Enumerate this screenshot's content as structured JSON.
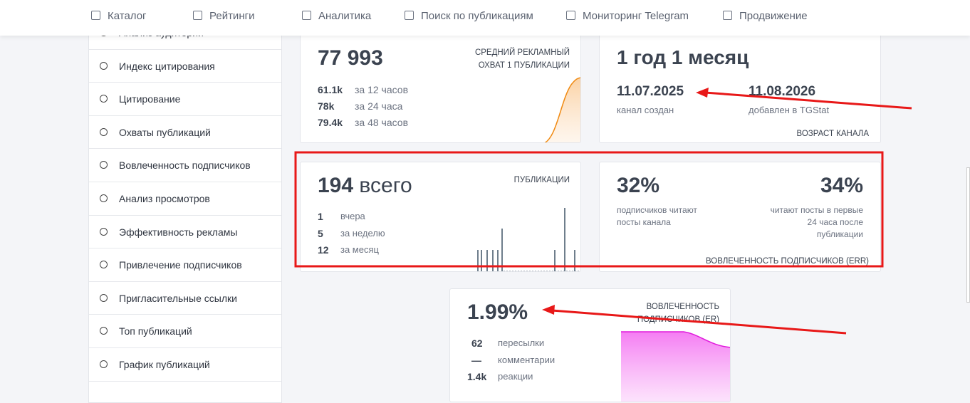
{
  "nav": [
    "Каталог",
    "Рейтинги",
    "Аналитика",
    "Поиск по публикациям",
    "Мониторинг Telegram",
    "Продвижение"
  ],
  "sidebar": [
    "Анализ аудитории",
    "Индекс цитирования",
    "Цитирование",
    "Охваты публикаций",
    "Вовлеченность подписчиков",
    "Анализ просмотров",
    "Эффективность рекламы",
    "Привлечение подписчиков",
    "Пригласительные ссылки",
    "Топ публикаций",
    "График публикаций"
  ],
  "cards": {
    "reach": {
      "value": "77 993",
      "label": "СРЕДНИЙ РЕКЛАМНЫЙ ОХВАТ 1 ПУБЛИКАЦИИ",
      "rows": [
        [
          "61.1k",
          "за 12 часов"
        ],
        [
          "78k",
          "за 24 часа"
        ],
        [
          "79.4k",
          "за 48 часов"
        ]
      ]
    },
    "age": {
      "value": "1 год 1 месяц",
      "created_date": "11.07.2025",
      "created_label": "канал создан",
      "added_date": "11.08.2026",
      "added_label": "добавлен в TGStat",
      "label": "ВОЗРАСТ КАНАЛА"
    },
    "posts": {
      "total": "194",
      "total_unit": "всего",
      "label": "ПУБЛИКАЦИИ",
      "rows": [
        [
          "1",
          "вчера"
        ],
        [
          "5",
          "за неделю"
        ],
        [
          "12",
          "за месяц"
        ]
      ]
    },
    "err": {
      "left_value": "32%",
      "left_label": "подписчиков читают посты канала",
      "right_value": "34%",
      "right_label": "читают посты в первые 24 часа после публикации",
      "label": "ВОВЛЕЧЕННОСТЬ ПОДПИСЧИКОВ (ERR)"
    },
    "er": {
      "value": "1.99%",
      "label": "ВОВЛЕЧЕННОСТЬ ПОДПИСЧИКОВ (ER)",
      "rows": [
        [
          "62",
          "пересылки"
        ],
        [
          "—",
          "комментарии"
        ],
        [
          "1.4k",
          "реакции"
        ]
      ]
    }
  }
}
